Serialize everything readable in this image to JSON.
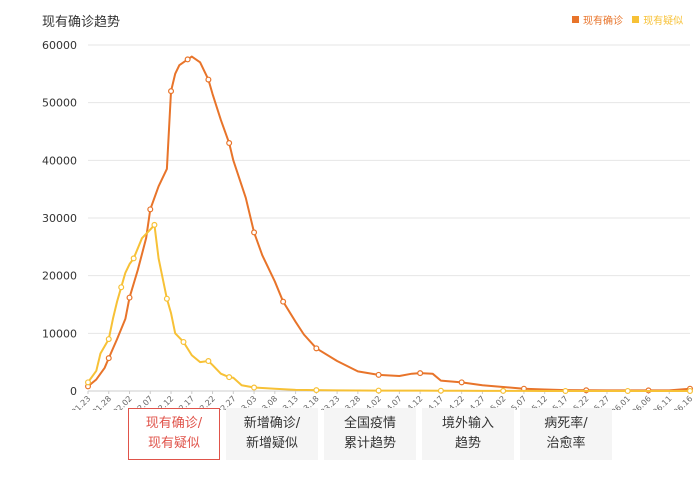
{
  "title": "现有确诊趋势",
  "legend": [
    {
      "label": "现有确诊",
      "color": "#e8742a"
    },
    {
      "label": "现有疑似",
      "color": "#f7c136"
    }
  ],
  "tabs": [
    {
      "line1": "现有确诊/",
      "line2": "现有疑似",
      "active": true
    },
    {
      "line1": "新增确诊/",
      "line2": "新增疑似",
      "active": false
    },
    {
      "line1": "全国疫情",
      "line2": "累计趋势",
      "active": false
    },
    {
      "line1": "境外输入",
      "line2": "趋势",
      "active": false
    },
    {
      "line1": "病死率/",
      "line2": "治愈率",
      "active": false
    }
  ],
  "colors": {
    "accent": "#e0534a",
    "grid": "#e6e6e6",
    "axis_text": "#333333"
  },
  "chart_data": {
    "type": "line",
    "ylim": [
      0,
      60000
    ],
    "yticks": [
      0,
      10000,
      20000,
      30000,
      40000,
      50000,
      60000
    ],
    "x_tick_labels": [
      "01.23",
      "01.28",
      "02.02",
      "02.07",
      "02.12",
      "02.17",
      "02.22",
      "02.27",
      "03.03",
      "03.08",
      "03.13",
      "03.18",
      "03.23",
      "03.28",
      "04.02",
      "04.07",
      "04.12",
      "04.17",
      "04.22",
      "04.27",
      "05.02",
      "05.07",
      "05.12",
      "05.17",
      "05.22",
      "05.27",
      "06.01",
      "06.06",
      "06.11",
      "06.16"
    ],
    "grid": true,
    "legend_position": "top-right",
    "series": [
      {
        "name": "现有确诊",
        "color": "#e8742a",
        "points": [
          {
            "x": "01.23",
            "y": 800
          },
          {
            "x": "01.25",
            "y": 2000
          },
          {
            "x": "01.27",
            "y": 4000
          },
          {
            "x": "01.28",
            "y": 5700
          },
          {
            "x": "01.30",
            "y": 9000
          },
          {
            "x": "02.01",
            "y": 12500
          },
          {
            "x": "02.02",
            "y": 16200
          },
          {
            "x": "02.04",
            "y": 21000
          },
          {
            "x": "02.06",
            "y": 26500
          },
          {
            "x": "02.07",
            "y": 31500
          },
          {
            "x": "02.09",
            "y": 35500
          },
          {
            "x": "02.11",
            "y": 38500
          },
          {
            "x": "02.12",
            "y": 52000
          },
          {
            "x": "02.13",
            "y": 55000
          },
          {
            "x": "02.14",
            "y": 56500
          },
          {
            "x": "02.16",
            "y": 57500
          },
          {
            "x": "02.17",
            "y": 58000
          },
          {
            "x": "02.19",
            "y": 57000
          },
          {
            "x": "02.21",
            "y": 54000
          },
          {
            "x": "02.22",
            "y": 51500
          },
          {
            "x": "02.24",
            "y": 47000
          },
          {
            "x": "02.26",
            "y": 43000
          },
          {
            "x": "02.27",
            "y": 40000
          },
          {
            "x": "03.01",
            "y": 33500
          },
          {
            "x": "03.03",
            "y": 27500
          },
          {
            "x": "03.05",
            "y": 23500
          },
          {
            "x": "03.08",
            "y": 19000
          },
          {
            "x": "03.10",
            "y": 15500
          },
          {
            "x": "03.13",
            "y": 12000
          },
          {
            "x": "03.15",
            "y": 9800
          },
          {
            "x": "03.18",
            "y": 7400
          },
          {
            "x": "03.23",
            "y": 5200
          },
          {
            "x": "03.28",
            "y": 3400
          },
          {
            "x": "04.02",
            "y": 2800
          },
          {
            "x": "04.07",
            "y": 2600
          },
          {
            "x": "04.10",
            "y": 3000
          },
          {
            "x": "04.12",
            "y": 3100
          },
          {
            "x": "04.15",
            "y": 3000
          },
          {
            "x": "04.17",
            "y": 1800
          },
          {
            "x": "04.22",
            "y": 1500
          },
          {
            "x": "04.27",
            "y": 1000
          },
          {
            "x": "05.02",
            "y": 700
          },
          {
            "x": "05.07",
            "y": 400
          },
          {
            "x": "05.12",
            "y": 250
          },
          {
            "x": "05.17",
            "y": 150
          },
          {
            "x": "05.22",
            "y": 120
          },
          {
            "x": "05.27",
            "y": 100
          },
          {
            "x": "06.01",
            "y": 100
          },
          {
            "x": "06.06",
            "y": 100
          },
          {
            "x": "06.11",
            "y": 100
          },
          {
            "x": "06.16",
            "y": 400
          }
        ]
      },
      {
        "name": "现有疑似",
        "color": "#f7c136",
        "points": [
          {
            "x": "01.23",
            "y": 1500
          },
          {
            "x": "01.25",
            "y": 3500
          },
          {
            "x": "01.26",
            "y": 6500
          },
          {
            "x": "01.28",
            "y": 9000
          },
          {
            "x": "01.29",
            "y": 12500
          },
          {
            "x": "01.30",
            "y": 15500
          },
          {
            "x": "01.31",
            "y": 18000
          },
          {
            "x": "02.01",
            "y": 20500
          },
          {
            "x": "02.02",
            "y": 22000
          },
          {
            "x": "02.03",
            "y": 23000
          },
          {
            "x": "02.05",
            "y": 26500
          },
          {
            "x": "02.07",
            "y": 28000
          },
          {
            "x": "02.08",
            "y": 28800
          },
          {
            "x": "02.09",
            "y": 23000
          },
          {
            "x": "02.10",
            "y": 19500
          },
          {
            "x": "02.11",
            "y": 16000
          },
          {
            "x": "02.12",
            "y": 13500
          },
          {
            "x": "02.13",
            "y": 10000
          },
          {
            "x": "02.15",
            "y": 8500
          },
          {
            "x": "02.17",
            "y": 6200
          },
          {
            "x": "02.19",
            "y": 5000
          },
          {
            "x": "02.21",
            "y": 5200
          },
          {
            "x": "02.22",
            "y": 4500
          },
          {
            "x": "02.24",
            "y": 3000
          },
          {
            "x": "02.26",
            "y": 2400
          },
          {
            "x": "02.27",
            "y": 2300
          },
          {
            "x": "02.29",
            "y": 1000
          },
          {
            "x": "03.03",
            "y": 600
          },
          {
            "x": "03.08",
            "y": 400
          },
          {
            "x": "03.13",
            "y": 200
          },
          {
            "x": "03.18",
            "y": 150
          },
          {
            "x": "03.23",
            "y": 100
          },
          {
            "x": "03.28",
            "y": 80
          },
          {
            "x": "04.02",
            "y": 70
          },
          {
            "x": "04.07",
            "y": 60
          },
          {
            "x": "04.12",
            "y": 60
          },
          {
            "x": "04.17",
            "y": 50
          },
          {
            "x": "04.22",
            "y": 40
          },
          {
            "x": "04.27",
            "y": 30
          },
          {
            "x": "05.02",
            "y": 20
          },
          {
            "x": "05.07",
            "y": 15
          },
          {
            "x": "05.12",
            "y": 10
          },
          {
            "x": "05.17",
            "y": 10
          },
          {
            "x": "05.22",
            "y": 10
          },
          {
            "x": "05.27",
            "y": 10
          },
          {
            "x": "06.01",
            "y": 10
          },
          {
            "x": "06.06",
            "y": 10
          },
          {
            "x": "06.11",
            "y": 10
          },
          {
            "x": "06.16",
            "y": 10
          }
        ]
      }
    ]
  }
}
